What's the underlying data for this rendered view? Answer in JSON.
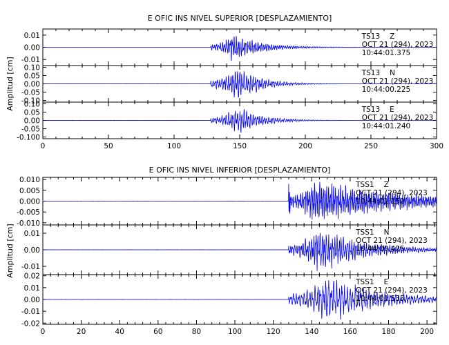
{
  "chart_data": [
    {
      "type": "line",
      "title": "E OFIC INS NIVEL SUPERIOR [DESPLAZAMIENTO]",
      "ylabel": "Amplitud [cm]",
      "xlim": [
        0,
        300
      ],
      "x_ticks": [
        0,
        50,
        100,
        150,
        200,
        250,
        300
      ],
      "colors": {
        "trace": "#0000ee",
        "axis": "#000000"
      },
      "panels": [
        {
          "station": "TS13",
          "component": "Z",
          "date": "OCT 21 (294), 2023",
          "time": "10:44:01.375",
          "ylim": [
            -0.015,
            0.015
          ],
          "y_ticks": [
            0.01,
            0.0,
            -0.01
          ],
          "y_tick_labels": [
            "0.01",
            "0.00",
            "-0.01"
          ],
          "signal": {
            "onset": 128,
            "peak_time": 145,
            "peak_amp": 0.011,
            "decay": 0.045,
            "period": 1.5,
            "pre_noise": 2e-05,
            "spike_at": 0,
            "spike_amp": 0
          }
        },
        {
          "station": "TS13",
          "component": "N",
          "date": "OCT 21 (294), 2023",
          "time": "10:44:00.225",
          "ylim": [
            -0.11,
            0.11
          ],
          "y_ticks": [
            0.1,
            0.05,
            0.0,
            -0.05,
            -0.1
          ],
          "y_tick_labels": [
            "0.10",
            "0.05",
            "0.00",
            "-0.05",
            "-0.10"
          ],
          "signal": {
            "onset": 128,
            "peak_time": 148,
            "peak_amp": 0.1,
            "decay": 0.055,
            "period": 1.7,
            "pre_noise": 0.0005,
            "spike_at": 0,
            "spike_amp": 0
          }
        },
        {
          "station": "TS13",
          "component": "E",
          "date": "OCT 21 (294), 2023",
          "time": "10:44:01.240",
          "ylim": [
            -0.11,
            0.11
          ],
          "y_ticks": [
            0.1,
            0.05,
            0.0,
            -0.05,
            -0.1
          ],
          "y_tick_labels": [
            "0.10",
            "0.05",
            "0.00",
            "-0.05",
            "-0.100"
          ],
          "signal": {
            "onset": 128,
            "peak_time": 150,
            "peak_amp": 0.08,
            "decay": 0.055,
            "period": 1.7,
            "pre_noise": 0.0005,
            "spike_at": 0,
            "spike_amp": 0
          }
        }
      ]
    },
    {
      "type": "line",
      "title": "E OFIC INS NIVEL INFERIOR [DESPLAZAMIENTO]",
      "ylabel": "Amplitud [cm]",
      "xlim": [
        0,
        205
      ],
      "x_ticks": [
        0,
        20,
        40,
        60,
        80,
        100,
        120,
        140,
        160,
        180,
        200
      ],
      "colors": {
        "trace": "#0000ee",
        "axis": "#000000"
      },
      "panels": [
        {
          "station": "TSS1",
          "component": "Z",
          "date": "OCT 21 (294), 2023",
          "time": "10:44:01.150",
          "ylim": [
            -0.011,
            0.011
          ],
          "y_ticks": [
            0.01,
            0.005,
            0.0,
            -0.005,
            -0.01
          ],
          "y_tick_labels": [
            "0.010",
            "0.005",
            "0.000",
            "-0.005",
            "-0.010"
          ],
          "signal": {
            "onset": 128,
            "peak_time": 141,
            "peak_amp": 0.01,
            "decay": 0.02,
            "period": 0.9,
            "pre_noise": 2e-05,
            "spike_at": 128,
            "spike_amp": 0.005
          }
        },
        {
          "station": "TSS1",
          "component": "N",
          "date": "OCT 21 (294), 2023",
          "time": "10:44:00.425",
          "ylim": [
            -0.015,
            0.015
          ],
          "y_ticks": [
            0.01,
            0.0,
            -0.01
          ],
          "y_tick_labels": [
            "0.01",
            "0.00",
            "-0.01"
          ],
          "signal": {
            "onset": 128,
            "peak_time": 143,
            "peak_amp": 0.013,
            "decay": 0.04,
            "period": 1.1,
            "pre_noise": 3e-05,
            "spike_at": 0,
            "spike_amp": 0
          }
        },
        {
          "station": "TSS1",
          "component": "E",
          "date": "OCT 21 (294), 2023",
          "time": "10:44:01.535",
          "ylim": [
            -0.021,
            0.021
          ],
          "y_ticks": [
            0.02,
            0.01,
            0.0,
            -0.01,
            -0.02
          ],
          "y_tick_labels": [
            "0.02",
            "0.01",
            "0.00",
            "-0.01",
            "-0.02"
          ],
          "signal": {
            "onset": 128,
            "peak_time": 148,
            "peak_amp": 0.019,
            "decay": 0.035,
            "period": 1.4,
            "pre_noise": 4e-05,
            "spike_at": 0,
            "spike_amp": 0
          }
        }
      ]
    }
  ]
}
